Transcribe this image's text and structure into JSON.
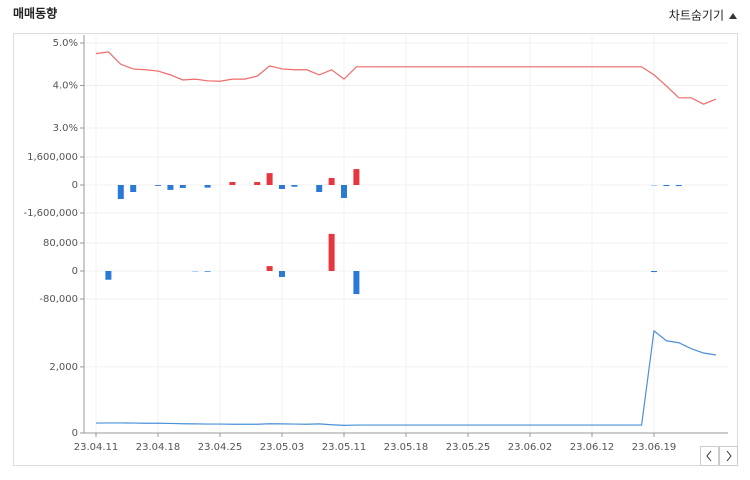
{
  "header": {
    "title": "매매동향",
    "toggle": "차트숨기기"
  },
  "chart_data": [
    {
      "type": "line",
      "color": "#f06a6a",
      "ylim": [
        2.8,
        5.2
      ],
      "yticks": [
        {
          "value": 3,
          "label": "3.0%"
        },
        {
          "value": 4,
          "label": "4.0%"
        },
        {
          "value": 5,
          "label": "5.0%"
        }
      ],
      "values": [
        4.75,
        4.79,
        4.5,
        4.39,
        4.37,
        4.34,
        4.25,
        4.13,
        4.15,
        4.11,
        4.1,
        4.15,
        4.15,
        4.22,
        4.46,
        4.39,
        4.37,
        4.37,
        4.25,
        4.37,
        4.15,
        4.44,
        4.44,
        4.44,
        4.44,
        4.44,
        4.44,
        4.44,
        4.44,
        4.44,
        4.44,
        4.44,
        4.44,
        4.44,
        4.44,
        4.44,
        4.44,
        4.44,
        4.44,
        4.44,
        4.44,
        4.44,
        4.44,
        4.44,
        4.44,
        4.25,
        3.99,
        3.71,
        3.71,
        3.56,
        3.68
      ]
    },
    {
      "type": "bar",
      "positive_color": "#e8363f",
      "negative_color": "#2a7ad5",
      "ylim": [
        -2000000,
        2000000
      ],
      "yticks": [
        {
          "value": -1600000,
          "label": "-1,600,000"
        },
        0,
        {
          "value": 1600000,
          "label": "1,600,000"
        }
      ],
      "values": [
        0,
        0,
        -800000,
        -400000,
        0,
        -50000,
        -280000,
        -170000,
        0,
        -150000,
        0,
        170000,
        0,
        170000,
        680000,
        -230000,
        -100000,
        0,
        -400000,
        400000,
        -740000,
        910000,
        0,
        0,
        0,
        0,
        0,
        0,
        0,
        0,
        0,
        0,
        0,
        0,
        0,
        0,
        0,
        0,
        0,
        0,
        0,
        0,
        0,
        0,
        0,
        -20000,
        -60000,
        -60000,
        0,
        0,
        0
      ]
    },
    {
      "type": "bar",
      "positive_color": "#e8363f",
      "negative_color": "#2a7ad5",
      "ylim": [
        -110000,
        120000
      ],
      "yticks": [
        {
          "value": -80000,
          "label": "-80,000"
        },
        0,
        {
          "value": 80000,
          "label": "80,000"
        }
      ],
      "values": [
        0,
        -25000,
        0,
        0,
        0,
        0,
        0,
        0,
        -1000,
        -2000,
        0,
        0,
        0,
        0,
        14000,
        -17000,
        0,
        0,
        0,
        106000,
        0,
        -66000,
        0,
        0,
        0,
        0,
        0,
        0,
        0,
        0,
        0,
        0,
        0,
        0,
        0,
        0,
        0,
        0,
        0,
        0,
        0,
        0,
        0,
        0,
        0,
        -3000,
        0,
        0,
        0,
        0,
        0
      ]
    },
    {
      "type": "line",
      "color": "#4a90d9",
      "ylim": [
        0,
        3600
      ],
      "yticks": [
        0,
        {
          "value": 2000,
          "label": "2,000"
        }
      ],
      "categories": [
        "23.04.11",
        null,
        null,
        null,
        null,
        "23.04.18",
        null,
        null,
        null,
        null,
        "23.04.25",
        null,
        null,
        null,
        null,
        "23.05.03",
        null,
        null,
        null,
        null,
        "23.05.11",
        null,
        null,
        null,
        null,
        "23.05.18",
        null,
        null,
        null,
        null,
        "23.05.25",
        null,
        null,
        null,
        null,
        "23.06.02",
        null,
        null,
        null,
        null,
        "23.06.12",
        null,
        null,
        null,
        null,
        "23.06.19",
        null,
        null,
        null,
        null,
        null
      ],
      "values": [
        300,
        305,
        305,
        300,
        295,
        295,
        290,
        280,
        275,
        270,
        270,
        265,
        265,
        265,
        280,
        275,
        270,
        265,
        275,
        250,
        230,
        240,
        240,
        240,
        240,
        240,
        240,
        240,
        240,
        240,
        240,
        240,
        240,
        240,
        240,
        240,
        240,
        240,
        240,
        240,
        240,
        240,
        240,
        240,
        240,
        3090,
        2790,
        2730,
        2550,
        2420,
        2360
      ]
    }
  ]
}
